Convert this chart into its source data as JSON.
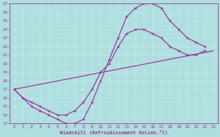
{
  "xlabel": "Windchill (Refroidissement éolien,°C)",
  "xlim": [
    -0.5,
    23.5
  ],
  "ylim": [
    13,
    27
  ],
  "yticks": [
    13,
    14,
    15,
    16,
    17,
    18,
    19,
    20,
    21,
    22,
    23,
    24,
    25,
    26,
    27
  ],
  "xticks": [
    0,
    1,
    2,
    3,
    4,
    5,
    6,
    7,
    8,
    9,
    10,
    11,
    12,
    13,
    14,
    15,
    16,
    17,
    18,
    19,
    20,
    21,
    22,
    23
  ],
  "bg_color": "#aedede",
  "line_color": "#993399",
  "grid_color": "#c8e8e8",
  "line1_x": [
    0,
    1,
    2,
    3,
    4,
    5,
    6,
    7,
    8,
    9,
    10,
    11,
    12,
    13,
    14,
    15,
    16,
    17,
    18,
    19,
    20,
    21,
    22
  ],
  "line1_y": [
    17,
    16,
    15,
    14.5,
    14,
    13.5,
    13,
    13,
    13.5,
    15.5,
    18,
    20.5,
    23,
    25.5,
    26.5,
    27,
    27,
    26.5,
    25,
    24,
    23,
    22.5,
    22
  ],
  "line2_x": [
    0,
    1,
    2,
    3,
    4,
    5,
    6,
    7,
    8,
    9,
    10,
    11,
    12,
    13,
    14,
    15,
    16,
    17,
    18,
    19,
    20,
    21,
    22
  ],
  "line2_y": [
    17,
    16,
    15.5,
    15,
    14.5,
    14,
    14,
    14.5,
    15.5,
    17,
    19,
    20,
    22,
    23.5,
    24,
    24,
    23.5,
    23,
    22,
    21.5,
    21,
    21,
    21.5
  ],
  "line3_x": [
    0,
    23
  ],
  "line3_y": [
    17,
    21.5
  ]
}
